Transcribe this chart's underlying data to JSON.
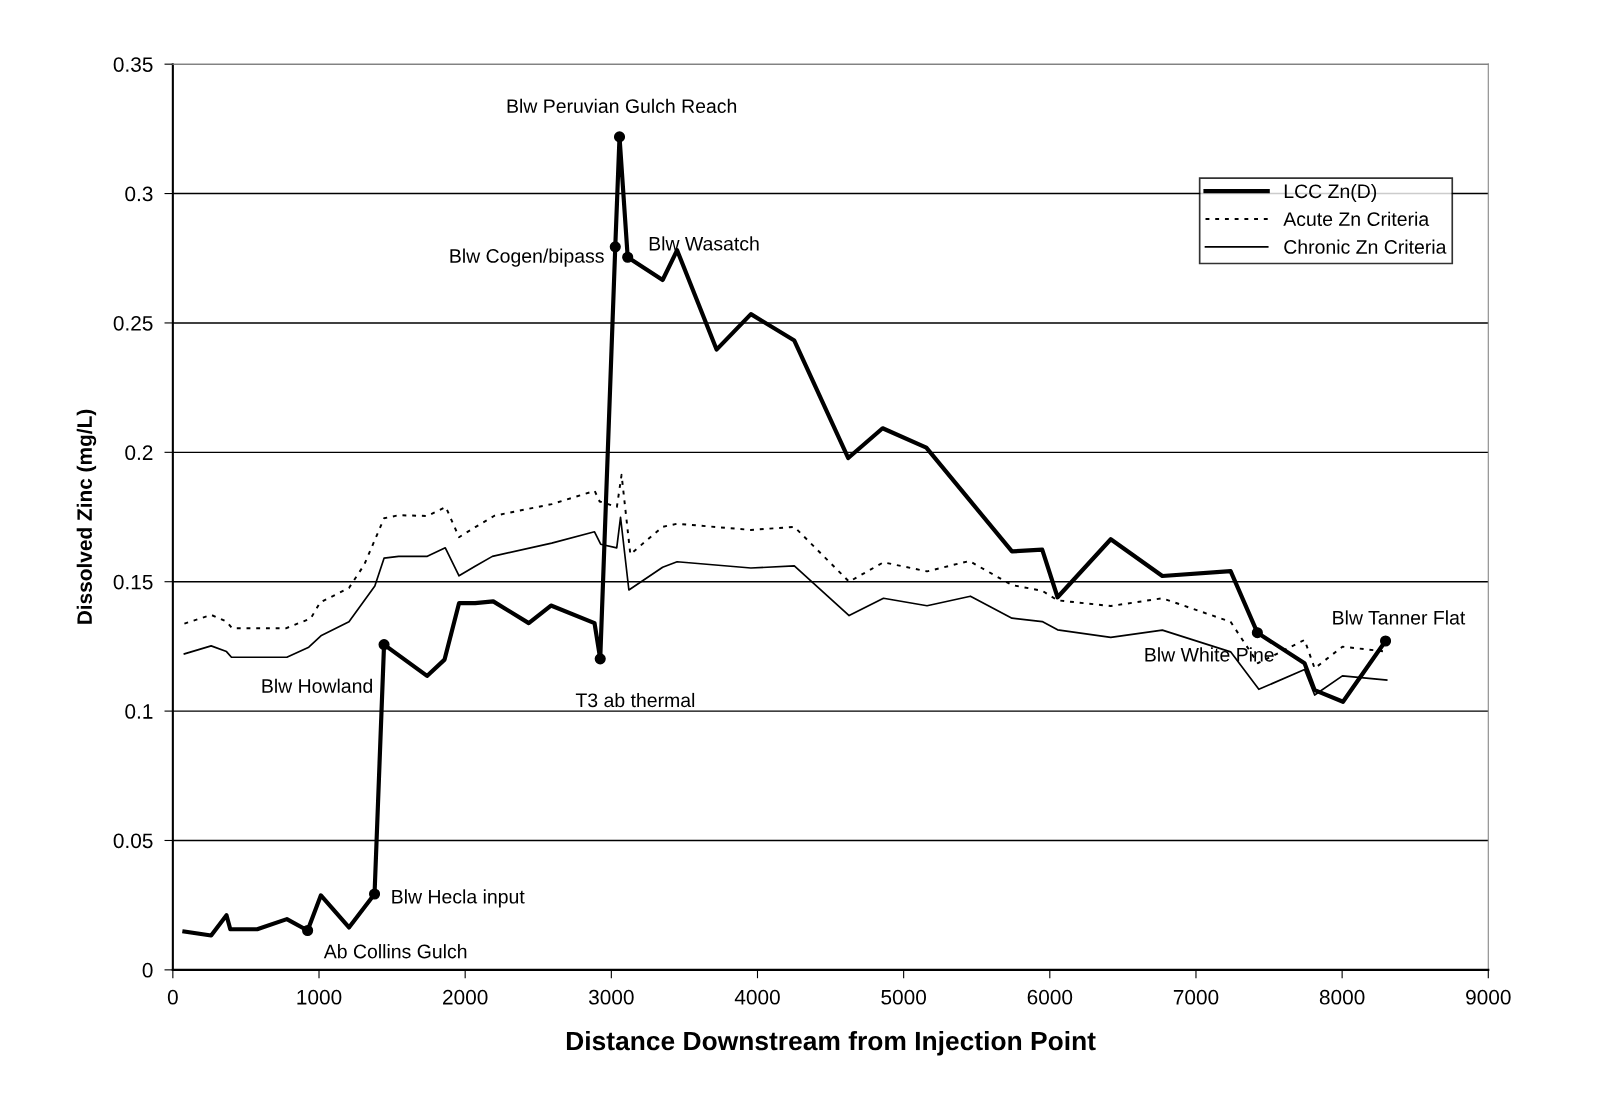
{
  "chart_data": {
    "type": "line",
    "xlabel": "Distance Downstream from Injection Point",
    "ylabel": "Dissolved Zinc (mg/L)",
    "xlim": [
      0,
      9000
    ],
    "xticks": [
      0,
      1000,
      2000,
      3000,
      4000,
      5000,
      6000,
      7000,
      8000,
      9000
    ],
    "ylim": [
      0,
      0.35
    ],
    "yticks": [
      0,
      0.05,
      0.1,
      0.15,
      0.2,
      0.25,
      0.3,
      0.35
    ],
    "grid": "y",
    "legend": "top right",
    "marker": "none",
    "series": [
      {
        "name": "LCC Zn(D)",
        "color": "#000000",
        "line_style": "solid",
        "x": [
          79,
          262,
          367,
          393,
          577,
          780,
          922,
          1013,
          1205,
          1380,
          1445,
          1739,
          1859,
          1958,
          2068,
          2192,
          2435,
          2587,
          2885,
          2924,
          3027,
          3056,
          3112,
          3351,
          3450,
          3720,
          3955,
          4252,
          4621,
          4856,
          5155,
          5443,
          5741,
          5948,
          6053,
          6417,
          6770,
          7237,
          7420,
          7743,
          7812,
          8006,
          8297
        ],
        "values": [
          0.0148,
          0.0133,
          0.0211,
          0.0157,
          0.0157,
          0.0196,
          0.0152,
          0.0288,
          0.0164,
          0.0293,
          0.1257,
          0.1136,
          0.1199,
          0.1417,
          0.1417,
          0.1424,
          0.134,
          0.1408,
          0.134,
          0.1202,
          0.2794,
          0.3219,
          0.2754,
          0.2666,
          0.2781,
          0.2397,
          0.2534,
          0.2432,
          0.1978,
          0.2093,
          0.2018,
          0.1821,
          0.1617,
          0.1624,
          0.144,
          0.1664,
          0.1522,
          0.1541,
          0.1303,
          0.1185,
          0.1081,
          0.1036,
          0.1271
        ]
      },
      {
        "name": "Acute Zn Criteria",
        "color": "#000000",
        "line_style": "dotted",
        "x": [
          79,
          262,
          367,
          406,
          773,
          943,
          1008,
          1205,
          1309,
          1445,
          1545,
          1741,
          1867,
          1958,
          2069,
          2200,
          2593,
          2886,
          2920,
          3038,
          3070,
          3130,
          3351,
          3450,
          3955,
          4252,
          4627,
          4862,
          5160,
          5449,
          5741,
          5948,
          6053,
          6417,
          6770,
          7237,
          7424,
          7743,
          7812,
          8002,
          8302
        ],
        "values": [
          0.1338,
          0.1372,
          0.1346,
          0.132,
          0.132,
          0.1358,
          0.142,
          0.1476,
          0.1565,
          0.1745,
          0.1757,
          0.1754,
          0.1789,
          0.1672,
          0.1711,
          0.1755,
          0.18,
          0.1851,
          0.181,
          0.1789,
          0.1913,
          0.1606,
          0.1712,
          0.1724,
          0.17,
          0.1712,
          0.15,
          0.1575,
          0.154,
          0.158,
          0.1487,
          0.1465,
          0.1428,
          0.1406,
          0.1436,
          0.1345,
          0.1185,
          0.1275,
          0.1165,
          0.1249,
          0.123
        ]
      },
      {
        "name": "Chronic Zn Criteria",
        "color": "#000000",
        "line_style": "solid",
        "x": [
          79,
          262,
          367,
          401,
          780,
          930,
          1013,
          1205,
          1382,
          1445,
          1545,
          1741,
          1864,
          1958,
          2068,
          2186,
          2592,
          2885,
          2927,
          3037,
          3063,
          3120,
          3351,
          3450,
          3955,
          4252,
          4627,
          4862,
          5160,
          5457,
          5741,
          5948,
          6053,
          6417,
          6770,
          7237,
          7430,
          7743,
          7812,
          8002,
          8305
        ],
        "values": [
          0.1221,
          0.1252,
          0.123,
          0.1208,
          0.1208,
          0.1247,
          0.1291,
          0.1345,
          0.1483,
          0.1591,
          0.1598,
          0.1598,
          0.1631,
          0.1523,
          0.156,
          0.1598,
          0.1649,
          0.1693,
          0.1645,
          0.1631,
          0.1749,
          0.1468,
          0.1556,
          0.1577,
          0.1553,
          0.1561,
          0.1369,
          0.1436,
          0.1407,
          0.1444,
          0.1359,
          0.1346,
          0.1314,
          0.1285,
          0.1313,
          0.1229,
          0.1084,
          0.1161,
          0.1062,
          0.1136,
          0.112
        ]
      }
    ],
    "annotations": [
      {
        "text": "Ab Collins Gulch",
        "x": 922,
        "y": 0.0152
      },
      {
        "text": "Blw Hecla input",
        "x": 1380,
        "y": 0.0293
      },
      {
        "text": "Blw Howland",
        "x": 1445,
        "y": 0.1257
      },
      {
        "text": "T3 ab thermal",
        "x": 2924,
        "y": 0.1202
      },
      {
        "text": "Blw Cogen/bipass",
        "x": 3027,
        "y": 0.2794
      },
      {
        "text": "Blw Peruvian Gulch Reach",
        "x": 3056,
        "y": 0.3219
      },
      {
        "text": "Blw Wasatch",
        "x": 3112,
        "y": 0.2754
      },
      {
        "text": "Blw White Pine",
        "x": 7420,
        "y": 0.1303
      },
      {
        "text": "Blw Tanner Flat",
        "x": 8297,
        "y": 0.1271
      }
    ]
  }
}
